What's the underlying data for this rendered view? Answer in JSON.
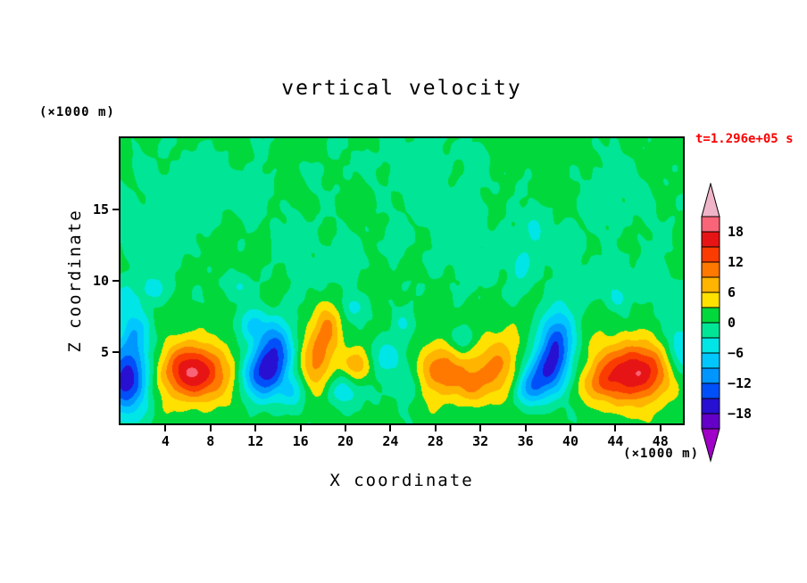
{
  "chart_data": {
    "type": "heatmap",
    "title": "vertical velocity",
    "xlabel": "X coordinate",
    "ylabel": "Z coordinate",
    "x_unit": "(×1000 m)",
    "y_unit": "(×1000 m)",
    "time_label": "t=1.296e+05 s",
    "time_label_color": "#fa0000",
    "xlim": [
      0,
      50
    ],
    "ylim": [
      0,
      20
    ],
    "xticks": [
      4,
      8,
      12,
      16,
      20,
      24,
      28,
      32,
      36,
      40,
      44,
      48
    ],
    "yticks": [
      5,
      10,
      15
    ],
    "grid": false,
    "legend_position": "right-colorbar",
    "levels": [
      -21,
      -18,
      -15,
      -12,
      -9,
      -6,
      -3,
      0,
      3,
      6,
      9,
      12,
      15,
      18,
      21
    ],
    "colorbar_labels": [
      18,
      12,
      6,
      0,
      -6,
      -12,
      -18
    ],
    "colors_low_to_high": [
      "#a000c8",
      "#6400c8",
      "#2810d2",
      "#0050fa",
      "#0096ff",
      "#00c8ff",
      "#00e6e6",
      "#00e696",
      "#00d83c",
      "#ffe100",
      "#ffb400",
      "#ff7800",
      "#fa3c00",
      "#e61414",
      "#fa6478",
      "#f0b4c8"
    ],
    "field": {
      "bias": 1.0,
      "noise": [
        [
          0.8,
          1.05,
          0.0,
          0.75,
          1.4
        ],
        [
          0.5,
          1.9,
          2.6,
          1.5,
          0.6
        ],
        [
          0.35,
          3.1,
          1.1,
          2.6,
          2.2
        ]
      ],
      "blobs": [
        [
          0.6,
          3.2,
          1.4,
          1.8,
          -18
        ],
        [
          1.3,
          6.6,
          0.9,
          1.1,
          -7
        ],
        [
          0.2,
          8.6,
          0.8,
          0.9,
          -5
        ],
        [
          6.6,
          3.6,
          2.2,
          1.4,
          17
        ],
        [
          12.6,
          3.4,
          1.4,
          1.3,
          -14
        ],
        [
          13.9,
          5.2,
          1.1,
          1.4,
          -13
        ],
        [
          11.8,
          6.9,
          0.9,
          0.9,
          -8
        ],
        [
          15.4,
          2.2,
          0.8,
          0.8,
          -6
        ],
        [
          17.4,
          4.2,
          1.1,
          1.6,
          9
        ],
        [
          18.4,
          6.7,
          0.9,
          1.3,
          7
        ],
        [
          21.2,
          4.1,
          0.9,
          0.9,
          8
        ],
        [
          20.0,
          2.3,
          1.5,
          0.9,
          -6
        ],
        [
          23.8,
          4.6,
          1.3,
          1.0,
          -7
        ],
        [
          25.8,
          2.8,
          0.9,
          0.9,
          -6
        ],
        [
          28.2,
          3.6,
          1.9,
          1.3,
          10
        ],
        [
          31.2,
          2.6,
          1.0,
          0.9,
          6
        ],
        [
          33.6,
          4.2,
          1.6,
          1.6,
          8
        ],
        [
          30.4,
          5.9,
          0.8,
          0.7,
          -5
        ],
        [
          36.2,
          2.2,
          0.9,
          0.8,
          -7
        ],
        [
          37.6,
          3.4,
          1.3,
          1.2,
          -13
        ],
        [
          38.8,
          5.6,
          1.1,
          1.6,
          -15
        ],
        [
          42.5,
          2.6,
          1.0,
          0.8,
          5
        ],
        [
          45.6,
          3.6,
          2.5,
          1.5,
          17
        ],
        [
          49.8,
          5.0,
          1.2,
          1.5,
          -8
        ],
        [
          3.2,
          9.4,
          1.0,
          0.7,
          -4.5
        ],
        [
          10.6,
          9.6,
          0.9,
          0.7,
          -4.5
        ],
        [
          20.6,
          8.2,
          0.8,
          0.6,
          -4.5
        ],
        [
          25.2,
          7.0,
          0.7,
          0.6,
          -4
        ],
        [
          35.6,
          11.2,
          0.9,
          1.3,
          -4.5
        ],
        [
          36.8,
          13.8,
          0.7,
          0.9,
          -4.5
        ],
        [
          44.2,
          8.8,
          0.8,
          0.7,
          -4
        ],
        [
          8,
          16.5,
          4.5,
          2.5,
          -2.2
        ],
        [
          30,
          13.5,
          3.5,
          3.0,
          -2.2
        ],
        [
          18,
          11.5,
          3.0,
          2.2,
          -2.0
        ],
        [
          45,
          16.0,
          3.0,
          2.2,
          -2.0
        ],
        [
          25,
          18.5,
          4.0,
          2.0,
          -2.0
        ],
        [
          40.5,
          11.0,
          2.2,
          2.0,
          -2.0
        ],
        [
          2.5,
          12.5,
          2.0,
          2.2,
          -2.0
        ],
        [
          47,
          10.0,
          2.0,
          1.8,
          -1.8
        ]
      ]
    }
  }
}
